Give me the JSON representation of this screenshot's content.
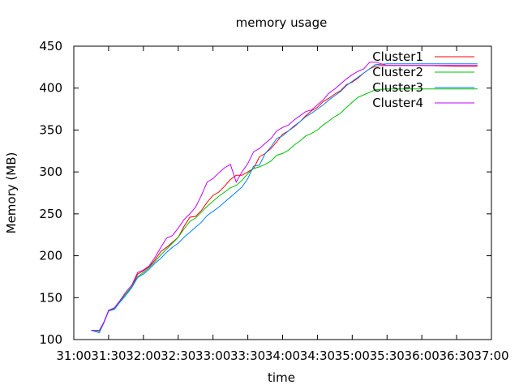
{
  "chart_data": {
    "type": "line",
    "title": "memory usage",
    "xlabel": "time",
    "ylabel": "Memory (MB)",
    "xlim": [
      "31:00",
      "37:00"
    ],
    "ylim": [
      100,
      450
    ],
    "x_ticks": [
      "31:00",
      "31:30",
      "32:00",
      "32:30",
      "33:00",
      "33:30",
      "34:00",
      "34:30",
      "35:00",
      "35:30",
      "36:00",
      "36:30",
      "37:00"
    ],
    "y_ticks": [
      100,
      150,
      200,
      250,
      300,
      350,
      400,
      450
    ],
    "grid": false,
    "legend_position": "top-right",
    "series": [
      {
        "name": "Cluster1",
        "color": "#ff0000",
        "points": [
          [
            "31:15",
            111
          ],
          [
            "31:22",
            110
          ],
          [
            "31:26",
            121
          ],
          [
            "31:30",
            134
          ],
          [
            "31:35",
            137
          ],
          [
            "31:40",
            146
          ],
          [
            "31:45",
            155
          ],
          [
            "31:50",
            163
          ],
          [
            "31:55",
            178
          ],
          [
            "32:00",
            182
          ],
          [
            "32:05",
            187
          ],
          [
            "32:10",
            195
          ],
          [
            "32:15",
            205
          ],
          [
            "32:20",
            210
          ],
          [
            "32:25",
            216
          ],
          [
            "32:30",
            222
          ],
          [
            "32:35",
            235
          ],
          [
            "32:40",
            246
          ],
          [
            "32:45",
            247
          ],
          [
            "32:50",
            254
          ],
          [
            "32:55",
            264
          ],
          [
            "33:00",
            272
          ],
          [
            "33:05",
            276
          ],
          [
            "33:10",
            283
          ],
          [
            "33:15",
            291
          ],
          [
            "33:20",
            296
          ],
          [
            "33:25",
            296
          ],
          [
            "33:30",
            300
          ],
          [
            "33:35",
            304
          ],
          [
            "33:40",
            318
          ],
          [
            "33:45",
            322
          ],
          [
            "33:50",
            328
          ],
          [
            "33:55",
            336
          ],
          [
            "34:00",
            345
          ],
          [
            "34:05",
            349
          ],
          [
            "34:10",
            354
          ],
          [
            "34:15",
            360
          ],
          [
            "34:20",
            367
          ],
          [
            "34:25",
            373
          ],
          [
            "34:30",
            377
          ],
          [
            "34:35",
            384
          ],
          [
            "34:40",
            388
          ],
          [
            "34:45",
            393
          ],
          [
            "34:50",
            397
          ],
          [
            "34:55",
            404
          ],
          [
            "35:00",
            407
          ],
          [
            "35:05",
            412
          ],
          [
            "35:10",
            418
          ],
          [
            "35:15",
            423
          ],
          [
            "35:20",
            426
          ],
          [
            "35:25",
            427
          ],
          [
            "35:30",
            427
          ],
          [
            "36:00",
            427
          ],
          [
            "36:30",
            426
          ],
          [
            "36:48",
            426
          ]
        ]
      },
      {
        "name": "Cluster2",
        "color": "#00c000",
        "points": [
          [
            "31:15",
            111
          ],
          [
            "31:22",
            110
          ],
          [
            "31:26",
            121
          ],
          [
            "31:30",
            134
          ],
          [
            "31:35",
            137
          ],
          [
            "31:40",
            146
          ],
          [
            "31:45",
            155
          ],
          [
            "31:50",
            163
          ],
          [
            "31:55",
            175
          ],
          [
            "32:00",
            180
          ],
          [
            "32:05",
            186
          ],
          [
            "32:10",
            193
          ],
          [
            "32:15",
            201
          ],
          [
            "32:20",
            208
          ],
          [
            "32:25",
            215
          ],
          [
            "32:30",
            222
          ],
          [
            "32:35",
            232
          ],
          [
            "32:40",
            241
          ],
          [
            "32:45",
            245
          ],
          [
            "32:50",
            252
          ],
          [
            "32:55",
            259
          ],
          [
            "33:00",
            265
          ],
          [
            "33:05",
            271
          ],
          [
            "33:10",
            276
          ],
          [
            "33:15",
            281
          ],
          [
            "33:20",
            284
          ],
          [
            "33:25",
            290
          ],
          [
            "33:30",
            298
          ],
          [
            "33:35",
            304
          ],
          [
            "33:40",
            306
          ],
          [
            "33:45",
            309
          ],
          [
            "33:50",
            313
          ],
          [
            "33:55",
            320
          ],
          [
            "34:00",
            322
          ],
          [
            "34:05",
            326
          ],
          [
            "34:10",
            332
          ],
          [
            "34:15",
            337
          ],
          [
            "34:20",
            343
          ],
          [
            "34:25",
            346
          ],
          [
            "34:30",
            350
          ],
          [
            "34:35",
            356
          ],
          [
            "34:40",
            361
          ],
          [
            "34:45",
            366
          ],
          [
            "34:50",
            370
          ],
          [
            "34:55",
            377
          ],
          [
            "35:00",
            383
          ],
          [
            "35:05",
            389
          ],
          [
            "35:10",
            392
          ],
          [
            "35:15",
            395
          ],
          [
            "35:20",
            398
          ],
          [
            "35:30",
            399
          ],
          [
            "36:00",
            399
          ],
          [
            "36:30",
            399
          ],
          [
            "36:48",
            399
          ]
        ]
      },
      {
        "name": "Cluster3",
        "color": "#0080ff",
        "points": [
          [
            "31:15",
            111
          ],
          [
            "31:22",
            108
          ],
          [
            "31:26",
            120
          ],
          [
            "31:30",
            134
          ],
          [
            "31:35",
            136
          ],
          [
            "31:40",
            145
          ],
          [
            "31:45",
            153
          ],
          [
            "31:50",
            162
          ],
          [
            "31:55",
            174
          ],
          [
            "32:00",
            178
          ],
          [
            "32:05",
            184
          ],
          [
            "32:10",
            191
          ],
          [
            "32:15",
            197
          ],
          [
            "32:20",
            204
          ],
          [
            "32:25",
            210
          ],
          [
            "32:30",
            215
          ],
          [
            "32:35",
            222
          ],
          [
            "32:40",
            228
          ],
          [
            "32:45",
            234
          ],
          [
            "32:50",
            240
          ],
          [
            "32:55",
            248
          ],
          [
            "33:00",
            253
          ],
          [
            "33:05",
            258
          ],
          [
            "33:10",
            264
          ],
          [
            "33:15",
            270
          ],
          [
            "33:20",
            276
          ],
          [
            "33:25",
            282
          ],
          [
            "33:30",
            292
          ],
          [
            "33:35",
            307
          ],
          [
            "33:40",
            308
          ],
          [
            "33:45",
            322
          ],
          [
            "33:50",
            330
          ],
          [
            "33:55",
            340
          ],
          [
            "34:00",
            343
          ],
          [
            "34:05",
            349
          ],
          [
            "34:10",
            355
          ],
          [
            "34:15",
            360
          ],
          [
            "34:20",
            366
          ],
          [
            "34:25",
            370
          ],
          [
            "34:30",
            375
          ],
          [
            "34:35",
            380
          ],
          [
            "34:40",
            386
          ],
          [
            "34:45",
            391
          ],
          [
            "34:50",
            396
          ],
          [
            "34:55",
            403
          ],
          [
            "35:00",
            408
          ],
          [
            "35:05",
            413
          ],
          [
            "35:10",
            418
          ],
          [
            "35:15",
            423
          ],
          [
            "35:20",
            428
          ],
          [
            "35:30",
            429
          ],
          [
            "36:00",
            429
          ],
          [
            "36:30",
            429
          ],
          [
            "36:48",
            429
          ]
        ]
      },
      {
        "name": "Cluster4",
        "color": "#c000ff",
        "points": [
          [
            "31:15",
            111
          ],
          [
            "31:22",
            111
          ],
          [
            "31:26",
            121
          ],
          [
            "31:30",
            135
          ],
          [
            "31:35",
            138
          ],
          [
            "31:40",
            147
          ],
          [
            "31:45",
            157
          ],
          [
            "31:50",
            165
          ],
          [
            "31:55",
            180
          ],
          [
            "32:00",
            183
          ],
          [
            "32:05",
            188
          ],
          [
            "32:10",
            198
          ],
          [
            "32:15",
            210
          ],
          [
            "32:20",
            221
          ],
          [
            "32:25",
            224
          ],
          [
            "32:30",
            233
          ],
          [
            "32:35",
            243
          ],
          [
            "32:40",
            250
          ],
          [
            "32:45",
            258
          ],
          [
            "32:50",
            272
          ],
          [
            "32:55",
            288
          ],
          [
            "33:00",
            292
          ],
          [
            "33:05",
            299
          ],
          [
            "33:10",
            305
          ],
          [
            "33:15",
            309
          ],
          [
            "33:20",
            288
          ],
          [
            "33:25",
            300
          ],
          [
            "33:30",
            310
          ],
          [
            "33:35",
            324
          ],
          [
            "33:40",
            328
          ],
          [
            "33:45",
            334
          ],
          [
            "33:50",
            340
          ],
          [
            "33:55",
            349
          ],
          [
            "34:00",
            353
          ],
          [
            "34:05",
            356
          ],
          [
            "34:10",
            362
          ],
          [
            "34:15",
            367
          ],
          [
            "34:20",
            372
          ],
          [
            "34:25",
            374
          ],
          [
            "34:30",
            380
          ],
          [
            "34:35",
            386
          ],
          [
            "34:40",
            394
          ],
          [
            "34:45",
            399
          ],
          [
            "34:50",
            405
          ],
          [
            "34:55",
            411
          ],
          [
            "35:00",
            416
          ],
          [
            "35:05",
            420
          ],
          [
            "35:10",
            423
          ],
          [
            "35:15",
            431
          ],
          [
            "35:20",
            431
          ],
          [
            "35:30",
            427
          ],
          [
            "36:00",
            427
          ],
          [
            "36:30",
            427
          ],
          [
            "36:48",
            427
          ]
        ]
      }
    ]
  }
}
